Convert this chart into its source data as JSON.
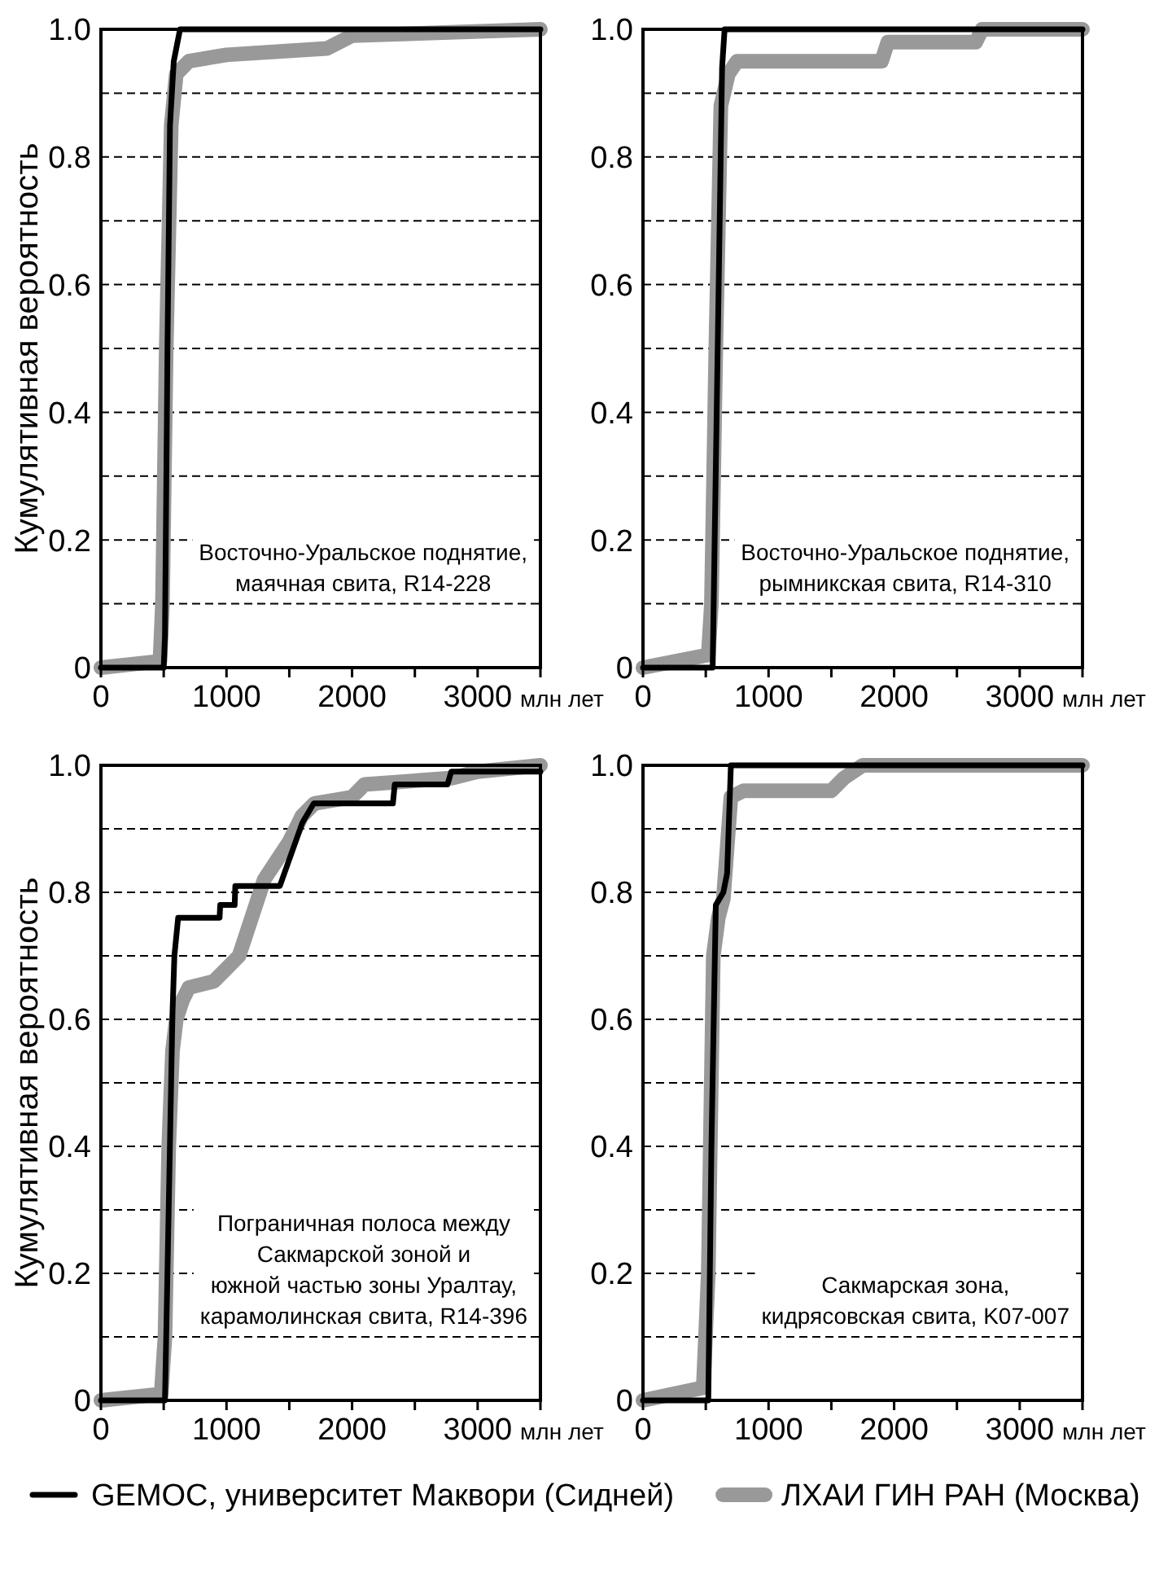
{
  "chart_data": [
    {
      "type": "line",
      "ylabel": "Кумулятивная вероятность",
      "xlabel": "млн лет",
      "xlim": [
        0,
        3500
      ],
      "ylim": [
        0,
        1
      ],
      "xticks": [
        0,
        {
          "value": 500,
          "label": null
        },
        1000,
        {
          "value": 1500,
          "label": null
        },
        2000,
        {
          "value": 2500,
          "label": null
        },
        3000,
        {
          "value": 3500,
          "label": null
        }
      ],
      "yticks": [
        0,
        {
          "value": 0.1,
          "label": null
        },
        0.2,
        {
          "value": 0.3,
          "label": null
        },
        0.4,
        {
          "value": 0.5,
          "label": null
        },
        0.6,
        {
          "value": 0.7,
          "label": null
        },
        0.8,
        {
          "value": 0.9,
          "label": null
        },
        {
          "value": 1,
          "label": "1.0"
        }
      ],
      "grid": "y",
      "annotations": [
        "Восточно-Уральское поднятие,\nмаячная свита, R14-228"
      ],
      "series": [
        {
          "color": "#000000",
          "x": [
            0,
            500,
            510,
            530,
            550,
            580,
            630,
            3500
          ],
          "values": [
            0,
            0,
            0.05,
            0.5,
            0.85,
            0.95,
            1,
            1
          ]
        },
        {
          "color": "#999999",
          "x": [
            0,
            470,
            490,
            520,
            560,
            600,
            700,
            1000,
            1800,
            2000,
            3500
          ],
          "values": [
            0,
            0.01,
            0.1,
            0.5,
            0.85,
            0.93,
            0.95,
            0.96,
            0.97,
            0.99,
            1
          ]
        }
      ]
    },
    {
      "type": "line",
      "xlabel": "млн лет",
      "xlim": [
        0,
        3500
      ],
      "ylim": [
        0,
        1
      ],
      "xticks": [
        0,
        {
          "value": 500,
          "label": null
        },
        1000,
        {
          "value": 1500,
          "label": null
        },
        2000,
        {
          "value": 2500,
          "label": null
        },
        3000,
        {
          "value": 3500,
          "label": null
        }
      ],
      "yticks": [
        0,
        {
          "value": 0.1,
          "label": null
        },
        0.2,
        {
          "value": 0.3,
          "label": null
        },
        0.4,
        {
          "value": 0.5,
          "label": null
        },
        0.6,
        {
          "value": 0.7,
          "label": null
        },
        0.8,
        {
          "value": 0.9,
          "label": null
        },
        {
          "value": 1,
          "label": "1.0"
        }
      ],
      "grid": "y",
      "annotations": [
        "Восточно-Уральское поднятие,\nрымникская свита, R14-310"
      ],
      "series": [
        {
          "color": "#000000",
          "x": [
            0,
            555,
            630,
            650,
            3500
          ],
          "values": [
            0,
            0,
            0.94,
            1,
            1
          ]
        },
        {
          "color": "#999999",
          "x": [
            0,
            520,
            545,
            580,
            620,
            680,
            750,
            1900,
            1950,
            2650,
            2700,
            3500
          ],
          "values": [
            0,
            0.02,
            0.1,
            0.5,
            0.88,
            0.93,
            0.95,
            0.95,
            0.98,
            0.98,
            1,
            1
          ]
        }
      ]
    },
    {
      "type": "line",
      "ylabel": "Кумулятивная вероятность",
      "xlabel": "млн лет",
      "xlim": [
        0,
        3500
      ],
      "ylim": [
        0,
        1
      ],
      "xticks": [
        0,
        {
          "value": 500,
          "label": null
        },
        1000,
        {
          "value": 1500,
          "label": null
        },
        2000,
        {
          "value": 2500,
          "label": null
        },
        3000,
        {
          "value": 3500,
          "label": null
        }
      ],
      "yticks": [
        0,
        {
          "value": 0.1,
          "label": null
        },
        0.2,
        {
          "value": 0.3,
          "label": null
        },
        0.4,
        {
          "value": 0.5,
          "label": null
        },
        0.6,
        {
          "value": 0.7,
          "label": null
        },
        0.8,
        {
          "value": 0.9,
          "label": null
        },
        {
          "value": 1,
          "label": "1.0"
        }
      ],
      "grid": "y",
      "legend": "bottom",
      "annotations": [
        "Пограничная полоса между\nСакмарской зоной и\nюжной частью зоны Уралтау,\nкарамолинская свита, R14-396"
      ],
      "series": [
        {
          "name": "GEMOC, университет Маквори (Сидней)",
          "color": "#000000",
          "x": [
            0,
            510,
            570,
            585,
            615,
            945,
            950,
            1065,
            1070,
            1425,
            1515,
            1605,
            1695,
            2325,
            2340,
            2760,
            2790,
            3500
          ],
          "values": [
            0,
            0,
            0.61,
            0.7,
            0.76,
            0.76,
            0.78,
            0.78,
            0.81,
            0.81,
            0.86,
            0.91,
            0.94,
            0.94,
            0.97,
            0.97,
            0.99,
            0.99
          ]
        },
        {
          "name": "ЛХАИ ГИН РАН (Москва)",
          "color": "#999999",
          "x": [
            0,
            480,
            510,
            540,
            570,
            600,
            650,
            700,
            900,
            1000,
            1100,
            1200,
            1300,
            1400,
            1500,
            1600,
            1700,
            2000,
            2100,
            2800,
            3000,
            3500
          ],
          "values": [
            0,
            0.01,
            0.1,
            0.4,
            0.55,
            0.6,
            0.63,
            0.65,
            0.66,
            0.68,
            0.7,
            0.76,
            0.82,
            0.85,
            0.88,
            0.92,
            0.94,
            0.95,
            0.97,
            0.98,
            0.99,
            1
          ]
        }
      ]
    },
    {
      "type": "line",
      "xlabel": "млн лет",
      "xlim": [
        0,
        3500
      ],
      "ylim": [
        0,
        1
      ],
      "xticks": [
        0,
        {
          "value": 500,
          "label": null
        },
        1000,
        {
          "value": 1500,
          "label": null
        },
        2000,
        {
          "value": 2500,
          "label": null
        },
        3000,
        {
          "value": 3500,
          "label": null
        }
      ],
      "yticks": [
        0,
        {
          "value": 0.1,
          "label": null
        },
        0.2,
        {
          "value": 0.3,
          "label": null
        },
        0.4,
        {
          "value": 0.5,
          "label": null
        },
        0.6,
        {
          "value": 0.7,
          "label": null
        },
        0.8,
        {
          "value": 0.9,
          "label": null
        },
        {
          "value": 1,
          "label": "1.0"
        }
      ],
      "grid": "y",
      "annotations": [
        "Сакмарская зона,\nкидрясовская свита, K07-007"
      ],
      "series": [
        {
          "color": "#000000",
          "x": [
            0,
            520,
            545,
            580,
            640,
            670,
            700,
            3500
          ],
          "values": [
            0,
            0,
            0.4,
            0.78,
            0.8,
            0.83,
            1,
            1
          ]
        },
        {
          "color": "#999999",
          "x": [
            0,
            480,
            520,
            560,
            600,
            640,
            700,
            800,
            1500,
            1600,
            1750,
            3500
          ],
          "values": [
            0,
            0.02,
            0.2,
            0.7,
            0.76,
            0.79,
            0.95,
            0.96,
            0.96,
            0.98,
            1,
            1
          ]
        }
      ]
    }
  ]
}
